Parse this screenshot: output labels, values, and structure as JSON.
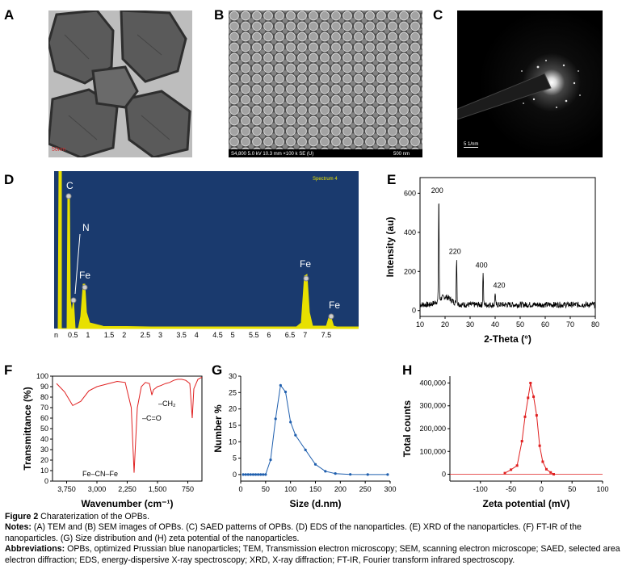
{
  "panels": {
    "a": {
      "letter": "A",
      "scalebar": "50nm"
    },
    "b": {
      "letter": "B",
      "footer_left": "S4,800 5.0 kV 10.3 mm ×100 k SE (U)",
      "footer_right": "500 nm"
    },
    "c": {
      "letter": "C",
      "scalebar": "5 1/nm"
    },
    "d": {
      "letter": "D",
      "spectrum": "Spectrum 4",
      "peaks": [
        "C",
        "N",
        "Fe",
        "Fe",
        "Fe"
      ],
      "xticks": [
        "0.5",
        "1",
        "1.5",
        "2",
        "2.5",
        "3",
        "3.5",
        "4",
        "4.5",
        "5",
        "5.5",
        "6",
        "6.5",
        "7",
        "7.5"
      ]
    },
    "e": {
      "letter": "E"
    },
    "f": {
      "letter": "F",
      "annotations": [
        "Fe–CN–Fe",
        "–C=O",
        "–CH₂"
      ]
    },
    "g": {
      "letter": "G"
    },
    "h": {
      "letter": "H"
    }
  },
  "chart_data": [
    {
      "panel": "E",
      "type": "line",
      "xlabel": "2-Theta (°)",
      "ylabel": "Intensity (au)",
      "xlim": [
        10,
        80
      ],
      "ylim": [
        -30,
        680
      ],
      "xticks": [
        10,
        20,
        30,
        40,
        50,
        60,
        70,
        80
      ],
      "yticks": [
        0,
        200,
        400,
        600
      ],
      "peaks": [
        {
          "x": 17.5,
          "y": 580,
          "label": "200"
        },
        {
          "x": 24.6,
          "y": 270,
          "label": "220"
        },
        {
          "x": 35.2,
          "y": 200,
          "label": "400"
        },
        {
          "x": 40.0,
          "y": 95,
          "label": "420"
        }
      ],
      "baseline": 30
    },
    {
      "panel": "F",
      "type": "line",
      "xlabel": "Wavenumber (cm⁻¹)",
      "ylabel": "Transmittance (%)",
      "xlim": [
        4100,
        400
      ],
      "ylim": [
        0,
        100
      ],
      "xticks": [
        "3,750",
        "3,000",
        "2,250",
        "1,500",
        "750"
      ],
      "yticks": [
        0,
        10,
        20,
        30,
        40,
        50,
        60,
        70,
        80,
        90,
        100
      ],
      "x": [
        4000,
        3800,
        3600,
        3400,
        3200,
        3000,
        2800,
        2500,
        2300,
        2150,
        2080,
        2000,
        1900,
        1800,
        1700,
        1640,
        1600,
        1500,
        1420,
        1300,
        1200,
        1100,
        1000,
        900,
        800,
        700,
        640,
        600,
        500,
        400
      ],
      "y": [
        93,
        85,
        72,
        76,
        86,
        90,
        92,
        95,
        94,
        70,
        8,
        70,
        90,
        94,
        93,
        82,
        87,
        90,
        91,
        93,
        94,
        96,
        97,
        97,
        96,
        93,
        60,
        88,
        97,
        99
      ]
    },
    {
      "panel": "G",
      "type": "line",
      "xlabel": "Size (d.nm)",
      "ylabel": "Number %",
      "xlim": [
        0,
        300
      ],
      "ylim": [
        -2,
        30
      ],
      "xticks": [
        0,
        50,
        100,
        150,
        200,
        250,
        300
      ],
      "yticks": [
        0,
        5,
        10,
        15,
        20,
        25,
        30
      ],
      "x": [
        5,
        10,
        15,
        20,
        25,
        30,
        35,
        40,
        45,
        50,
        60,
        70,
        80,
        90,
        100,
        110,
        130,
        150,
        170,
        190,
        220,
        255,
        295
      ],
      "y": [
        0,
        0,
        0,
        0,
        0,
        0,
        0,
        0,
        0,
        0,
        4.5,
        17,
        27.2,
        25.2,
        16,
        12,
        7.5,
        3.1,
        1,
        0.3,
        0.05,
        0,
        0
      ]
    },
    {
      "panel": "H",
      "type": "line",
      "xlabel": "Zeta potential (mV)",
      "ylabel": "Total counts",
      "xlim": [
        -150,
        100
      ],
      "ylim": [
        -30000,
        430000
      ],
      "xticks": [
        -100,
        -50,
        0,
        50,
        100
      ],
      "yticks": [
        "0",
        "100,000",
        "200,000",
        "300,000",
        "400,000"
      ],
      "x": [
        -60,
        -50,
        -40,
        -32,
        -27,
        -22,
        -18,
        -13,
        -8,
        -3,
        2,
        8,
        15,
        20
      ],
      "y": [
        5000,
        20000,
        38000,
        145000,
        252000,
        335000,
        400000,
        340000,
        258000,
        125000,
        55000,
        22000,
        8000,
        0
      ]
    }
  ],
  "caption": {
    "figure_label": "Figure 2",
    "figure_title": "Charaterization of the OPBs.",
    "notes_label": "Notes:",
    "notes_text": "(A) TEM and (B) SEM images of OPBs. (C) SAED patterns of OPBs. (D) EDS of the nanoparticles. (E) XRD of the nanoparticles. (F) FT-IR of the nanoparticles. (G) Size distribution and (H) zeta potential of the nanoparticles.",
    "abbr_label": "Abbreviations:",
    "abbr_text": "OPBs, optimized Prussian blue nanoparticles; TEM, Transmission electron microscopy; SEM, scanning electron microscope; SAED, selected area electron diffraction; EDS, energy-dispersive X-ray spectroscopy; XRD, X-ray diffraction; FT-IR, Fourier transform infrared spectroscopy."
  }
}
